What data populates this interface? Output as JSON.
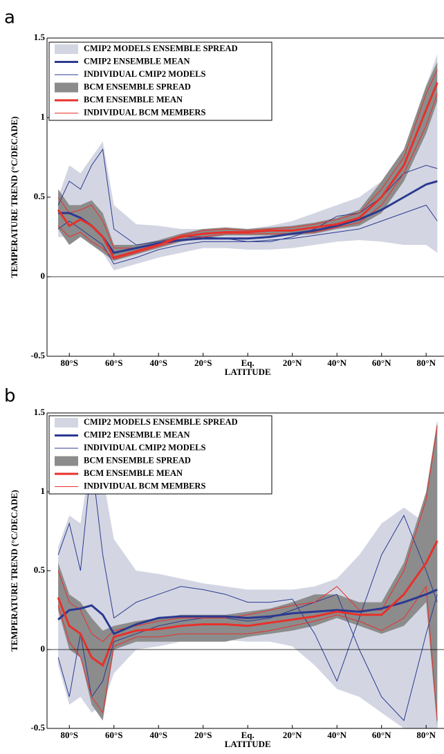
{
  "chart_data": [
    {
      "type": "line",
      "label": "a",
      "xlabel": "LATITUDE",
      "ylabel": "TEMPERATURE TREND (°C/DECADE)",
      "x": [
        -85,
        -80,
        -75,
        -70,
        -65,
        -60,
        -50,
        -40,
        -30,
        -20,
        -10,
        0,
        10,
        20,
        30,
        40,
        50,
        60,
        70,
        80,
        85
      ],
      "xlim": [
        -90,
        88
      ],
      "ylim": [
        -0.5,
        1.5
      ],
      "xticks": [
        {
          "value": -80,
          "label": "80°S"
        },
        {
          "value": -60,
          "label": "60°S"
        },
        {
          "value": -40,
          "label": "40°S"
        },
        {
          "value": -20,
          "label": "20°S"
        },
        {
          "value": 0,
          "label": "Eq."
        },
        {
          "value": 20,
          "label": "20°N"
        },
        {
          "value": 40,
          "label": "40°N"
        },
        {
          "value": 60,
          "label": "60°N"
        },
        {
          "value": 80,
          "label": "80°N"
        }
      ],
      "yticks": [
        -0.5,
        0,
        0.5,
        1,
        1.5
      ],
      "series": [
        {
          "name": "CMIP2 MODELS ENSEMBLE SPREAD",
          "kind": "band",
          "color": "#d3d6e2",
          "upper": [
            0.5,
            0.7,
            0.65,
            0.75,
            0.85,
            0.45,
            0.33,
            0.32,
            0.3,
            0.3,
            0.28,
            0.3,
            0.32,
            0.35,
            0.4,
            0.45,
            0.5,
            0.6,
            0.8,
            1.2,
            1.4
          ],
          "lower": [
            0.25,
            0.25,
            0.25,
            0.2,
            0.15,
            0.04,
            0.08,
            0.12,
            0.15,
            0.18,
            0.18,
            0.17,
            0.17,
            0.18,
            0.2,
            0.22,
            0.23,
            0.22,
            0.2,
            0.2,
            0.15
          ]
        },
        {
          "name": "CMIP2 ENSEMBLE MEAN",
          "kind": "mean",
          "color": "#2b3990",
          "values": [
            0.4,
            0.4,
            0.37,
            0.32,
            0.25,
            0.15,
            0.18,
            0.21,
            0.23,
            0.24,
            0.24,
            0.24,
            0.25,
            0.27,
            0.29,
            0.32,
            0.36,
            0.42,
            0.5,
            0.58,
            0.6
          ]
        },
        {
          "name": "INDIVIDUAL CMIP2 MODELS",
          "kind": "members",
          "color": "#2b3990",
          "members": [
            [
              0.45,
              0.6,
              0.55,
              0.7,
              0.8,
              0.3,
              0.2,
              0.22,
              0.25,
              0.25,
              0.24,
              0.22,
              0.22,
              0.25,
              0.3,
              0.38,
              0.4,
              0.5,
              0.65,
              0.7,
              0.68
            ],
            [
              0.3,
              0.35,
              0.3,
              0.25,
              0.2,
              0.08,
              0.12,
              0.17,
              0.2,
              0.22,
              0.22,
              0.22,
              0.23,
              0.24,
              0.26,
              0.28,
              0.3,
              0.35,
              0.4,
              0.45,
              0.35
            ]
          ]
        },
        {
          "name": "BCM ENSEMBLE SPREAD",
          "kind": "band",
          "color": "#8c8c8c",
          "upper": [
            0.55,
            0.45,
            0.45,
            0.48,
            0.4,
            0.2,
            0.2,
            0.23,
            0.27,
            0.3,
            0.31,
            0.3,
            0.31,
            0.32,
            0.34,
            0.37,
            0.42,
            0.6,
            0.8,
            1.2,
            1.35
          ],
          "lower": [
            0.3,
            0.2,
            0.25,
            0.2,
            0.15,
            0.1,
            0.14,
            0.18,
            0.22,
            0.24,
            0.26,
            0.26,
            0.26,
            0.26,
            0.27,
            0.3,
            0.32,
            0.4,
            0.6,
            0.9,
            1.1
          ]
        },
        {
          "name": "BCM ENSEMBLE MEAN",
          "kind": "mean",
          "color": "#e8302a",
          "values": [
            0.42,
            0.32,
            0.36,
            0.32,
            0.25,
            0.12,
            0.16,
            0.2,
            0.25,
            0.27,
            0.28,
            0.28,
            0.29,
            0.29,
            0.31,
            0.33,
            0.37,
            0.5,
            0.7,
            1.05,
            1.22
          ]
        },
        {
          "name": "INDIVIDUAL BCM MEMBERS",
          "kind": "members",
          "color": "#e8302a",
          "members": [
            [
              0.5,
              0.4,
              0.42,
              0.45,
              0.35,
              0.18,
              0.18,
              0.21,
              0.26,
              0.29,
              0.3,
              0.29,
              0.3,
              0.31,
              0.33,
              0.36,
              0.4,
              0.55,
              0.75,
              1.15,
              1.3
            ],
            [
              0.32,
              0.25,
              0.28,
              0.22,
              0.18,
              0.11,
              0.15,
              0.19,
              0.23,
              0.25,
              0.27,
              0.27,
              0.27,
              0.27,
              0.28,
              0.31,
              0.34,
              0.45,
              0.65,
              0.95,
              1.15
            ]
          ]
        }
      ]
    },
    {
      "type": "line",
      "label": "b",
      "xlabel": "LATITUDE",
      "ylabel": "TEMPERATURE TREND (°C/DECADE)",
      "x": [
        -85,
        -80,
        -75,
        -70,
        -65,
        -60,
        -50,
        -40,
        -30,
        -20,
        -10,
        0,
        10,
        20,
        30,
        40,
        50,
        60,
        70,
        80,
        85
      ],
      "xlim": [
        -90,
        88
      ],
      "ylim": [
        -0.5,
        1.5
      ],
      "xticks": [
        {
          "value": -80,
          "label": "80°S"
        },
        {
          "value": -60,
          "label": "60°S"
        },
        {
          "value": -40,
          "label": "40°S"
        },
        {
          "value": -20,
          "label": "20°S"
        },
        {
          "value": 0,
          "label": "Eq."
        },
        {
          "value": 20,
          "label": "20°N"
        },
        {
          "value": 40,
          "label": "40°N"
        },
        {
          "value": 60,
          "label": "60°N"
        },
        {
          "value": 80,
          "label": "80°N"
        }
      ],
      "yticks": [
        -0.5,
        0,
        0.5,
        1,
        1.5
      ],
      "series": [
        {
          "name": "CMIP2 MODELS ENSEMBLE SPREAD",
          "kind": "band",
          "color": "#d3d6e2",
          "upper": [
            0.65,
            0.85,
            0.8,
            1.25,
            1.1,
            0.7,
            0.5,
            0.48,
            0.45,
            0.42,
            0.4,
            0.38,
            0.38,
            0.38,
            0.4,
            0.45,
            0.6,
            0.8,
            0.9,
            0.8,
            0.7
          ],
          "lower": [
            -0.1,
            -0.35,
            -0.3,
            -0.4,
            -0.35,
            -0.15,
            0,
            0.02,
            0.05,
            0.06,
            0.06,
            0.05,
            0.05,
            0.02,
            -0.1,
            -0.25,
            -0.3,
            -0.4,
            -0.5,
            -0.5,
            -0.5
          ]
        },
        {
          "name": "CMIP2 ENSEMBLE MEAN",
          "kind": "mean",
          "color": "#2b3990",
          "values": [
            0.19,
            0.25,
            0.26,
            0.28,
            0.22,
            0.1,
            0.16,
            0.2,
            0.21,
            0.21,
            0.21,
            0.2,
            0.21,
            0.23,
            0.24,
            0.25,
            0.24,
            0.26,
            0.3,
            0.35,
            0.38
          ]
        },
        {
          "name": "INDIVIDUAL CMIP2 MODELS",
          "kind": "members",
          "color": "#2b3990",
          "members": [
            [
              0.6,
              0.8,
              0.5,
              1.2,
              0.6,
              0.2,
              0.3,
              0.35,
              0.4,
              0.38,
              0.35,
              0.3,
              0.3,
              0.32,
              0.1,
              -0.2,
              0.2,
              0.6,
              0.85,
              0.5,
              0.3
            ],
            [
              -0.05,
              -0.3,
              0.1,
              -0.3,
              -0.2,
              0.05,
              0.1,
              0.15,
              0.18,
              0.2,
              0.2,
              0.18,
              0.2,
              0.25,
              0.3,
              0.35,
              0.0,
              -0.3,
              -0.45,
              0.1,
              0.35
            ]
          ]
        },
        {
          "name": "BCM ENSEMBLE SPREAD",
          "kind": "band",
          "color": "#8c8c8c",
          "upper": [
            0.55,
            0.35,
            0.3,
            0.2,
            0.12,
            0.15,
            0.18,
            0.2,
            0.22,
            0.22,
            0.22,
            0.24,
            0.26,
            0.3,
            0.35,
            0.35,
            0.3,
            0.3,
            0.55,
            1.0,
            1.45
          ],
          "lower": [
            0.25,
            0.0,
            -0.05,
            -0.35,
            -0.45,
            0.0,
            0.05,
            0.05,
            0.05,
            0.05,
            0.05,
            0.08,
            0.1,
            0.12,
            0.15,
            0.2,
            0.15,
            0.1,
            0.15,
            0.3,
            -0.5
          ]
        },
        {
          "name": "BCM ENSEMBLE MEAN",
          "kind": "mean",
          "color": "#e8302a",
          "values": [
            0.33,
            0.15,
            0.1,
            -0.05,
            -0.1,
            0.08,
            0.12,
            0.13,
            0.15,
            0.16,
            0.16,
            0.15,
            0.17,
            0.19,
            0.21,
            0.24,
            0.22,
            0.22,
            0.35,
            0.55,
            0.69
          ]
        },
        {
          "name": "INDIVIDUAL BCM MEMBERS",
          "kind": "members",
          "color": "#e8302a",
          "members": [
            [
              0.5,
              0.3,
              0.25,
              0.1,
              0.05,
              0.12,
              0.15,
              0.18,
              0.2,
              0.2,
              0.2,
              0.22,
              0.25,
              0.28,
              0.3,
              0.4,
              0.25,
              0.25,
              0.5,
              0.95,
              1.42
            ],
            [
              0.28,
              0.05,
              -0.05,
              -0.3,
              -0.4,
              0.02,
              0.08,
              0.08,
              0.1,
              0.1,
              0.1,
              0.1,
              0.12,
              0.15,
              0.18,
              0.22,
              0.18,
              0.12,
              0.2,
              0.4,
              -0.45
            ]
          ]
        }
      ]
    }
  ]
}
